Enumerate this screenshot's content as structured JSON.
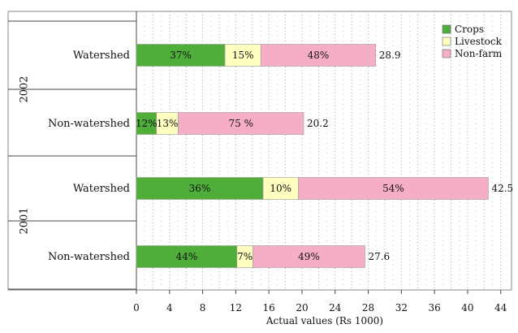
{
  "chart_data": {
    "type": "bar",
    "orientation": "horizontal",
    "stacked": true,
    "xlabel": "Actual values (Rs 1000)",
    "xlim": [
      0,
      44
    ],
    "xticks": [
      0,
      4,
      8,
      12,
      16,
      20,
      24,
      28,
      32,
      36,
      40,
      44
    ],
    "grid": "vertical dotted",
    "legend_position": "top-right",
    "groups": [
      "2002",
      "2001"
    ],
    "categories": [
      {
        "group": "2002",
        "label": "Watershed",
        "total": "28.9",
        "shares": [
          37,
          15,
          48
        ],
        "share_labels": [
          "37%",
          "15%",
          "48%"
        ]
      },
      {
        "group": "2002",
        "label": "Non-watershed",
        "total": "20.2",
        "shares": [
          12,
          13,
          75
        ],
        "share_labels": [
          "12%",
          "13%",
          "75 %"
        ]
      },
      {
        "group": "2001",
        "label": "Watershed",
        "total": "42.5",
        "shares": [
          36,
          10,
          54
        ],
        "share_labels": [
          "36%",
          "10%",
          "54%"
        ]
      },
      {
        "group": "2001",
        "label": "Non-watershed",
        "total": "27.6",
        "shares": [
          44,
          7,
          49
        ],
        "share_labels": [
          "44%",
          "7%",
          "49%"
        ]
      }
    ],
    "series": [
      {
        "name": "Crops",
        "color": "#4fae3a"
      },
      {
        "name": "Livestock",
        "color": "#ffffc0"
      },
      {
        "name": "Non-farm",
        "color": "#f6aec6"
      }
    ]
  }
}
